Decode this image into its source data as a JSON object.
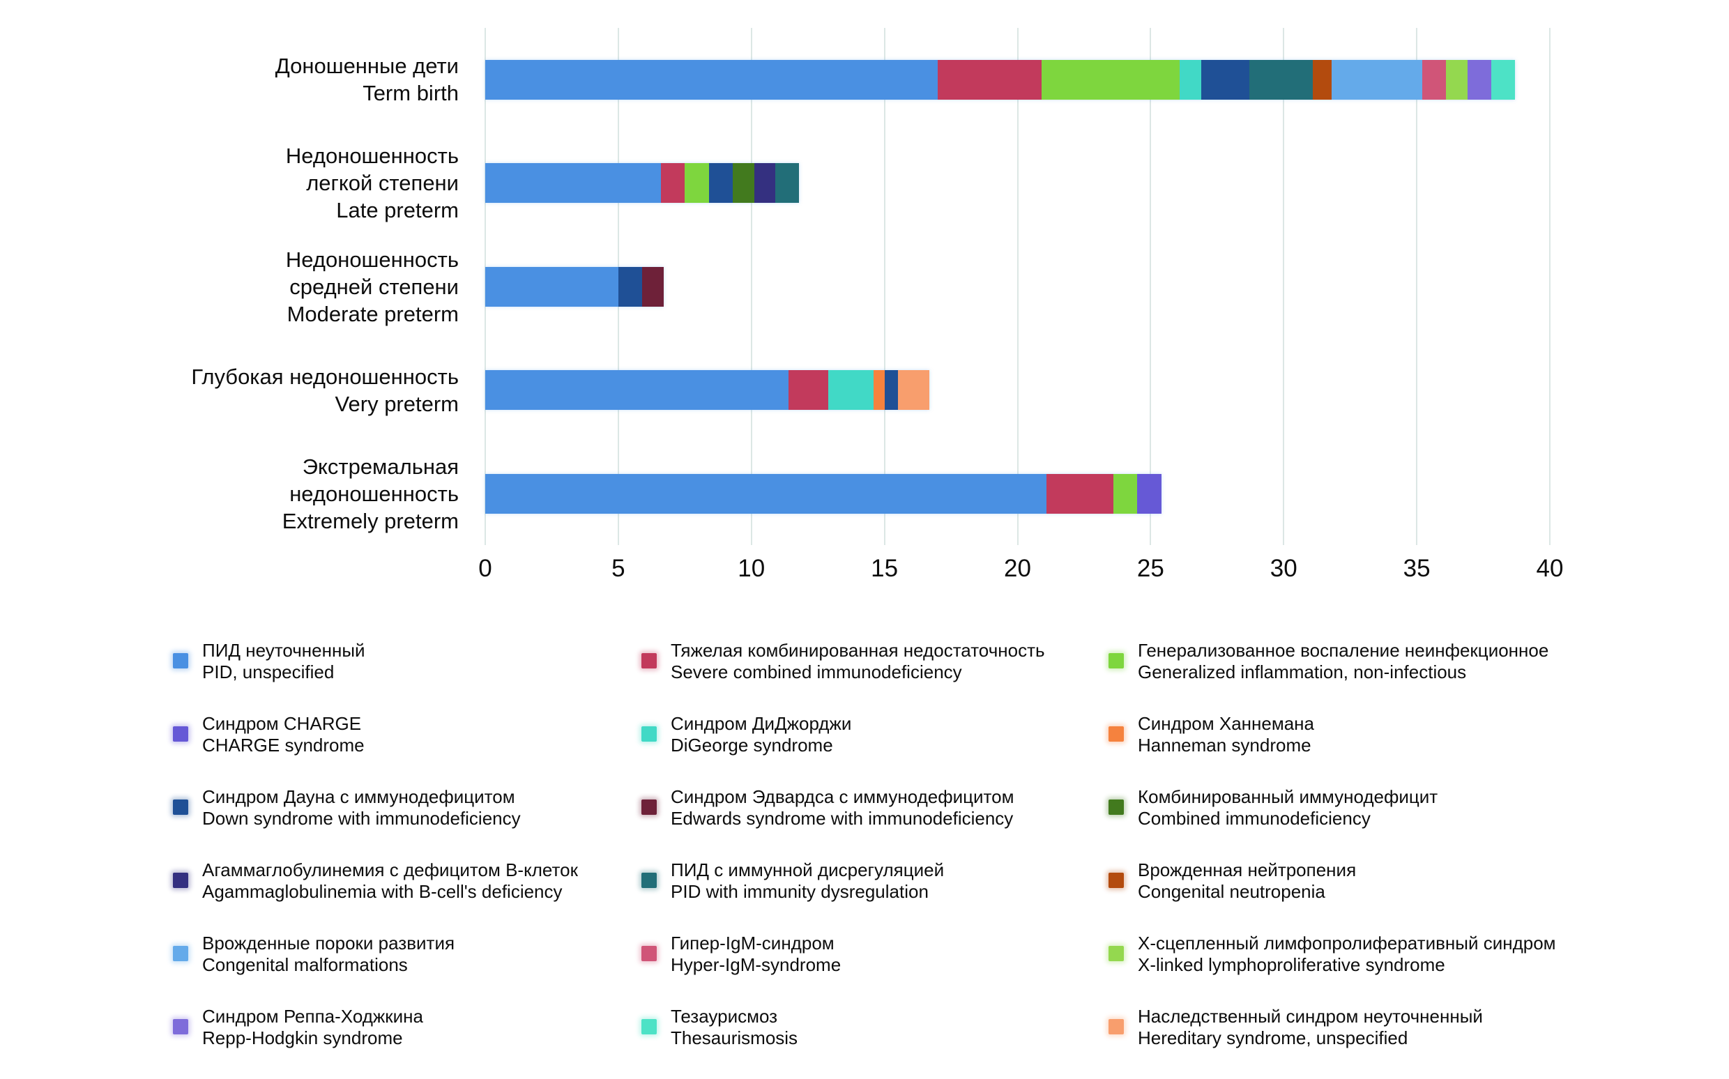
{
  "chart_data": {
    "type": "bar",
    "orientation": "horizontal",
    "stacked": true,
    "title": "",
    "xlabel": "",
    "ylabel": "",
    "xlim": [
      0,
      40
    ],
    "xticks": [
      0,
      5,
      10,
      15,
      20,
      25,
      30,
      35,
      40
    ],
    "grid": true,
    "legend_position": "bottom",
    "legend_columns": 3,
    "categories": [
      {
        "lines": [
          "Доношенные дети",
          "Term birth"
        ]
      },
      {
        "lines": [
          "Недоношенность",
          "легкой степени",
          "Late preterm"
        ]
      },
      {
        "lines": [
          "Недоношенность",
          "средней степени",
          "Moderate preterm"
        ]
      },
      {
        "lines": [
          "Глубокая недоношенность",
          "Very preterm"
        ]
      },
      {
        "lines": [
          "Экстремальная",
          "недоношенность",
          "Extremely preterm"
        ]
      }
    ],
    "series": [
      {
        "name_ru": "ПИД неуточненный",
        "name_en": "PID, unspecified",
        "color": "#4a90e2",
        "values": [
          17.0,
          6.6,
          5.0,
          11.4,
          21.1
        ]
      },
      {
        "name_ru": "Тяжелая комбинированная недостаточность",
        "name_en": "Severe combined immunodeficiency",
        "color": "#c23a5c",
        "values": [
          3.9,
          0.9,
          0,
          1.5,
          2.5
        ]
      },
      {
        "name_ru": "Генерализованное воспаление неинфекционное",
        "name_en": "Generalized inflammation, non-infectious",
        "color": "#7ed63e",
        "values": [
          5.2,
          0.9,
          0,
          0,
          0.9
        ]
      },
      {
        "name_ru": "Синдром CHARGE",
        "name_en": "CHARGE syndrome",
        "color": "#6659d6",
        "values": [
          0,
          0,
          0,
          0,
          0.9
        ]
      },
      {
        "name_ru": "Синдром ДиДжорджи",
        "name_en": "DiGeorge syndrome",
        "color": "#41d9c6",
        "values": [
          0.8,
          0,
          0,
          1.7,
          0
        ]
      },
      {
        "name_ru": "Синдром Ханнемана",
        "name_en": "Hanneman syndrome",
        "color": "#f5823e",
        "values": [
          0,
          0,
          0,
          0.4,
          0
        ]
      },
      {
        "name_ru": "Синдром Дауна с иммунодефицитом",
        "name_en": "Down syndrome with immunodeficiency",
        "color": "#1f5096",
        "values": [
          1.8,
          0.9,
          0.9,
          0.5,
          0
        ]
      },
      {
        "name_ru": "Синдром Эдвардса с иммунодефицитом",
        "name_en": "Edwards syndrome with immunodeficiency",
        "color": "#6e2139",
        "values": [
          0,
          0,
          0.8,
          0,
          0
        ]
      },
      {
        "name_ru": "Комбинированный иммунодефицит",
        "name_en": "Combined immunodeficiency",
        "color": "#427a1e",
        "values": [
          0,
          0.8,
          0,
          0,
          0
        ]
      },
      {
        "name_ru": "Агаммаглобулинемия с дефицитом В-клеток",
        "name_en": "Agammaglobulinemia with B-cell's deficiency",
        "color": "#343080",
        "values": [
          0,
          0.8,
          0,
          0,
          0
        ]
      },
      {
        "name_ru": "ПИД с иммунной дисрегуляцией",
        "name_en": "PID with immunity dysregulation",
        "color": "#226e78",
        "values": [
          2.4,
          0.9,
          0,
          0,
          0
        ]
      },
      {
        "name_ru": "Врожденная нейтропения",
        "name_en": "Congenital neutropenia",
        "color": "#b34b0e",
        "values": [
          0.7,
          0,
          0,
          0,
          0
        ]
      },
      {
        "name_ru": "Врожденные пороки развития",
        "name_en": "Congenital malformations",
        "color": "#64aaea",
        "values": [
          3.4,
          0,
          0,
          0,
          0
        ]
      },
      {
        "name_ru": "Гипер-IgM-синдром",
        "name_en": "Hyper-IgM-syndrome",
        "color": "#d05578",
        "values": [
          0.9,
          0,
          0,
          0,
          0
        ]
      },
      {
        "name_ru": "Х-сцепленный лимфопролиферативный синдром",
        "name_en": "X-linked lymphoproliferative syndrome",
        "color": "#94d84f",
        "values": [
          0.8,
          0,
          0,
          0,
          0
        ]
      },
      {
        "name_ru": "Синдром Реппа-Ходжкина",
        "name_en": "Repp-Hodgkin syndrome",
        "color": "#7e6cda",
        "values": [
          0.9,
          0,
          0,
          0,
          0
        ]
      },
      {
        "name_ru": "Тезаурисмоз",
        "name_en": "Thesaurismosis",
        "color": "#4de2c6",
        "values": [
          0.9,
          0,
          0,
          0,
          0
        ]
      },
      {
        "name_ru": "Наследственный синдром неуточненный",
        "name_en": "Hereditary syndrome, unspecified",
        "color": "#f89e6d",
        "values": [
          0,
          0,
          0,
          1.2,
          0
        ]
      }
    ]
  },
  "style_colors": {
    "gridline": "#dce7e5",
    "text": "#0d0d0d",
    "background": "#ffffff"
  }
}
